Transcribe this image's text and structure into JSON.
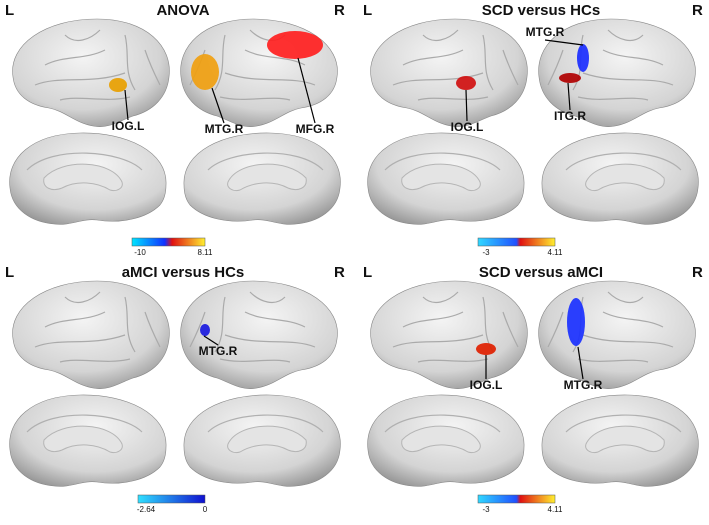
{
  "panels": [
    {
      "title": "ANOVA",
      "left": "L",
      "right": "R",
      "regions": [
        "IOG.L",
        "MTG.R",
        "MFG.R"
      ],
      "colorbar": {
        "min": "-10",
        "max": "8.11"
      }
    },
    {
      "title": "SCD versus HCs",
      "left": "L",
      "right": "R",
      "regions": [
        "MTG.R",
        "IOG.L",
        "ITG.R"
      ],
      "colorbar": {
        "min": "-3",
        "max": "4.11"
      }
    },
    {
      "title": "aMCI versus HCs",
      "left": "L",
      "right": "R",
      "regions": [
        "MTG.R"
      ],
      "colorbar": {
        "min": "-2.64",
        "max": "0"
      }
    },
    {
      "title": "SCD versus aMCI",
      "left": "L",
      "right": "R",
      "regions": [
        "IOG.L",
        "MTG.R"
      ],
      "colorbar": {
        "min": "-3",
        "max": "4.11"
      }
    }
  ]
}
